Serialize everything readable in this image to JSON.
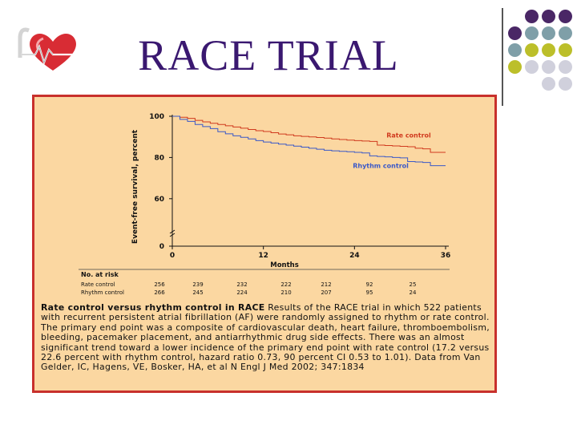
{
  "slide": {
    "title": "RACE TRIAL",
    "logo_icon": "heart-logo-icon",
    "dot_colors": [
      "#4a2766",
      "#7f9fa8",
      "#bcbf2a",
      "#d0d0dc"
    ]
  },
  "chart_data": {
    "type": "line",
    "title": "",
    "xlabel": "Months",
    "ylabel": "Event-free survival, percent",
    "xlim": [
      0,
      36
    ],
    "ylim": [
      0,
      100
    ],
    "axis_break": true,
    "x_ticks": [
      0,
      12,
      24,
      36
    ],
    "y_ticks": [
      0,
      60,
      80,
      100
    ],
    "x_tick_labels": [
      "0",
      "12",
      "24",
      "36"
    ],
    "y_tick_labels": [
      "0",
      "60",
      "80",
      "100"
    ],
    "series": [
      {
        "name": "Rate control",
        "color": "#d03a1e",
        "x": [
          0,
          1,
          2,
          3,
          4,
          5,
          6,
          7,
          8,
          9,
          10,
          11,
          12,
          13,
          14,
          15,
          16,
          17,
          18,
          19,
          20,
          21,
          22,
          23,
          24,
          25,
          26,
          27,
          28,
          29,
          30,
          31,
          32,
          33,
          34,
          35,
          36
        ],
        "values": [
          100,
          99.5,
          99,
          98,
          97.3,
          96.6,
          96,
          95.4,
          94.8,
          94.2,
          93.6,
          93,
          92.6,
          92,
          91.4,
          91,
          90.5,
          90.2,
          90,
          89.7,
          89.4,
          89,
          88.7,
          88.4,
          88.2,
          88,
          87.8,
          86,
          85.8,
          85.6,
          85.4,
          85.2,
          84.5,
          84.2,
          82.5,
          82.5,
          82.5
        ]
      },
      {
        "name": "Rhythm control",
        "color": "#3a58c8",
        "x": [
          0,
          1,
          2,
          3,
          4,
          5,
          6,
          7,
          8,
          9,
          10,
          11,
          12,
          13,
          14,
          15,
          16,
          17,
          18,
          19,
          20,
          21,
          22,
          23,
          24,
          25,
          26,
          27,
          28,
          29,
          30,
          31,
          32,
          33,
          34,
          35,
          36
        ],
        "values": [
          100,
          98.5,
          97.5,
          96,
          95,
          94,
          92.5,
          91.5,
          90.5,
          89.8,
          89,
          88.2,
          87.5,
          87,
          86.5,
          86,
          85.5,
          85,
          84.5,
          84,
          83.5,
          83.2,
          83,
          82.8,
          82.5,
          82.2,
          80.8,
          80.5,
          80.3,
          80,
          79.8,
          78,
          77.8,
          77.6,
          76,
          76,
          76
        ]
      }
    ],
    "at_risk": {
      "title": "No. at risk",
      "rows": [
        {
          "label": "Rate control",
          "values": [
            "256",
            "239",
            "232",
            "222",
            "212",
            "92",
            "25"
          ]
        },
        {
          "label": "Rhythm control",
          "values": [
            "266",
            "245",
            "224",
            "210",
            "207",
            "95",
            "24"
          ]
        }
      ]
    }
  },
  "caption": {
    "heading": "Rate control versus rhythm control in RACE",
    "text": "Results of the RACE trial in which 522 patients with recurrent persistent atrial fibrillation (AF) were randomly assigned to rhythm or rate control. The primary end point was a composite of cardiovascular death, heart failure, thromboembolism, bleeding, pacemaker placement, and antiarrhythmic drug side effects. There was an almost significant trend toward a lower incidence of the primary end point with rate control (17.2 versus 22.6 percent with rhythm control, hazard ratio 0.73, 90 percent CI 0.53 to 1.01). Data from Van Gelder, IC, Hagens, VE, Bosker, HA, et al N Engl J Med 2002; 347:1834"
  }
}
